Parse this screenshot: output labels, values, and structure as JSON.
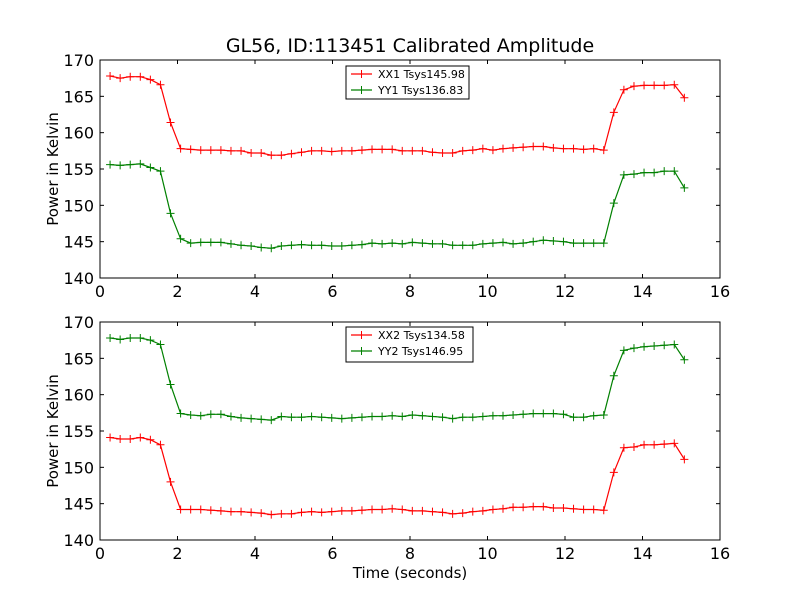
{
  "figure": {
    "title": "GL56, ID:113451 Calibrated Amplitude"
  },
  "chart_data": [
    {
      "type": "line",
      "title": "GL56, ID:113451 Calibrated Amplitude",
      "xlabel": "",
      "ylabel": "Power in Kelvin",
      "xlim": [
        0,
        16
      ],
      "ylim": [
        140,
        170
      ],
      "xticks": [
        0,
        2,
        4,
        6,
        8,
        10,
        12,
        14,
        16
      ],
      "yticks": [
        140,
        145,
        150,
        155,
        160,
        165,
        170
      ],
      "legend": "top-center",
      "grid": false,
      "x": [
        0.26,
        0.52,
        0.78,
        1.04,
        1.3,
        1.56,
        1.82,
        2.08,
        2.34,
        2.6,
        2.86,
        3.12,
        3.38,
        3.64,
        3.9,
        4.16,
        4.42,
        4.68,
        4.94,
        5.2,
        5.46,
        5.72,
        5.98,
        6.24,
        6.5,
        6.76,
        7.02,
        7.28,
        7.54,
        7.8,
        8.06,
        8.32,
        8.58,
        8.84,
        9.1,
        9.36,
        9.62,
        9.88,
        10.14,
        10.4,
        10.66,
        10.92,
        11.18,
        11.44,
        11.7,
        11.96,
        12.22,
        12.48,
        12.74,
        13.0,
        13.26,
        13.52,
        13.78,
        14.04,
        14.3,
        14.56,
        14.82,
        15.08
      ],
      "series": [
        {
          "name": "XX1 Tsys145.98",
          "color": "#ff0000",
          "values": [
            167.8,
            167.5,
            167.7,
            167.7,
            167.3,
            166.6,
            161.4,
            157.8,
            157.7,
            157.6,
            157.6,
            157.6,
            157.5,
            157.5,
            157.2,
            157.2,
            156.9,
            156.9,
            157.1,
            157.3,
            157.5,
            157.5,
            157.4,
            157.5,
            157.5,
            157.6,
            157.7,
            157.7,
            157.7,
            157.5,
            157.5,
            157.5,
            157.3,
            157.2,
            157.2,
            157.5,
            157.6,
            157.8,
            157.6,
            157.8,
            157.9,
            158.0,
            158.1,
            158.1,
            157.9,
            157.8,
            157.8,
            157.7,
            157.8,
            157.6,
            162.8,
            165.9,
            166.4,
            166.5,
            166.5,
            166.5,
            166.6,
            164.8
          ]
        },
        {
          "name": "YY1 Tsys136.83",
          "color": "#008000",
          "values": [
            155.6,
            155.5,
            155.6,
            155.7,
            155.2,
            154.7,
            148.9,
            145.4,
            144.8,
            144.9,
            144.9,
            144.9,
            144.7,
            144.5,
            144.4,
            144.2,
            144.1,
            144.4,
            144.5,
            144.6,
            144.5,
            144.5,
            144.4,
            144.4,
            144.5,
            144.6,
            144.8,
            144.7,
            144.8,
            144.7,
            144.9,
            144.8,
            144.7,
            144.7,
            144.5,
            144.5,
            144.5,
            144.7,
            144.8,
            144.9,
            144.7,
            144.8,
            145.0,
            145.2,
            145.1,
            145.0,
            144.8,
            144.8,
            144.8,
            144.8,
            150.3,
            154.2,
            154.3,
            154.5,
            154.5,
            154.7,
            154.7,
            152.4
          ]
        }
      ]
    },
    {
      "type": "line",
      "title": "",
      "xlabel": "Time (seconds)",
      "ylabel": "Power in Kelvin",
      "xlim": [
        0,
        16
      ],
      "ylim": [
        140,
        170
      ],
      "xticks": [
        0,
        2,
        4,
        6,
        8,
        10,
        12,
        14,
        16
      ],
      "yticks": [
        140,
        145,
        150,
        155,
        160,
        165,
        170
      ],
      "legend": "top-center",
      "grid": false,
      "x": [
        0.26,
        0.52,
        0.78,
        1.04,
        1.3,
        1.56,
        1.82,
        2.08,
        2.34,
        2.6,
        2.86,
        3.12,
        3.38,
        3.64,
        3.9,
        4.16,
        4.42,
        4.68,
        4.94,
        5.2,
        5.46,
        5.72,
        5.98,
        6.24,
        6.5,
        6.76,
        7.02,
        7.28,
        7.54,
        7.8,
        8.06,
        8.32,
        8.58,
        8.84,
        9.1,
        9.36,
        9.62,
        9.88,
        10.14,
        10.4,
        10.66,
        10.92,
        11.18,
        11.44,
        11.7,
        11.96,
        12.22,
        12.48,
        12.74,
        13.0,
        13.26,
        13.52,
        13.78,
        14.04,
        14.3,
        14.56,
        14.82,
        15.08
      ],
      "series": [
        {
          "name": "XX2 Tsys134.58",
          "color": "#ff0000",
          "values": [
            154.1,
            153.9,
            153.9,
            154.1,
            153.8,
            153.1,
            148.0,
            144.2,
            144.2,
            144.2,
            144.1,
            144.0,
            143.9,
            143.9,
            143.8,
            143.7,
            143.5,
            143.6,
            143.6,
            143.8,
            143.9,
            143.8,
            143.9,
            144.0,
            144.0,
            144.1,
            144.2,
            144.2,
            144.3,
            144.2,
            144.0,
            144.0,
            143.9,
            143.8,
            143.6,
            143.7,
            143.9,
            144.0,
            144.2,
            144.3,
            144.5,
            144.5,
            144.6,
            144.6,
            144.4,
            144.4,
            144.3,
            144.2,
            144.2,
            144.1,
            149.3,
            152.7,
            152.8,
            153.1,
            153.1,
            153.2,
            153.3,
            151.1
          ]
        },
        {
          "name": "YY2 Tsys146.95",
          "color": "#008000",
          "values": [
            167.8,
            167.6,
            167.8,
            167.8,
            167.5,
            166.9,
            161.4,
            157.4,
            157.2,
            157.1,
            157.3,
            157.3,
            157.0,
            156.8,
            156.7,
            156.6,
            156.5,
            157.0,
            156.9,
            156.9,
            157.0,
            156.9,
            156.8,
            156.7,
            156.8,
            156.9,
            157.0,
            157.0,
            157.1,
            157.0,
            157.2,
            157.1,
            157.0,
            156.9,
            156.7,
            156.9,
            156.9,
            157.0,
            157.1,
            157.1,
            157.2,
            157.3,
            157.4,
            157.4,
            157.4,
            157.3,
            156.9,
            156.9,
            157.1,
            157.2,
            162.6,
            166.1,
            166.4,
            166.6,
            166.7,
            166.8,
            166.9,
            164.8
          ]
        }
      ]
    }
  ]
}
